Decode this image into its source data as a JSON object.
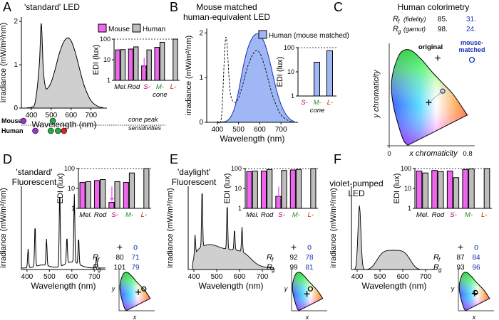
{
  "colors": {
    "mouse": "#ee66ee",
    "human": "#bdbdbd",
    "humanBlue": "#9fb8f5",
    "blueText": "#1a2fb5",
    "melGreen": "#1e8a2e",
    "sRed": "#b3006b",
    "lRed": "#cc2200",
    "fill": "#cfcfcf"
  },
  "panels": {
    "A": {
      "letter": "A",
      "title": "'standard' LED",
      "xlabel": "Wavelength (nm)",
      "ylabel": "irradiance (mW/m²/nm)",
      "yticks": [
        "0",
        "1",
        "2"
      ],
      "xticks": [
        "400",
        "500",
        "600",
        "700"
      ],
      "legend_mouse": "Mouse",
      "legend_human": "Human",
      "edi_label": "EDI (lux)",
      "edi_ticks": [
        "1",
        "10",
        "100"
      ],
      "cats": [
        "Mel.",
        "Rod",
        "S-",
        "M-",
        "L-"
      ],
      "cone": "cone",
      "row_mouse": "Mouse",
      "row_human": "Human",
      "cone_note_1": "cone peak",
      "cone_note_2": "sensitivities"
    },
    "B": {
      "letter": "B",
      "title_1": "Mouse matched",
      "title_2": "human-equivalent LED",
      "xlabel": "Wavelength (nm)",
      "ylabel": "irradiance (mW/m²/nm)",
      "yticks": [
        "0",
        "1",
        "2"
      ],
      "xticks": [
        "400",
        "500",
        "600",
        "700"
      ],
      "legend": "Human (mouse matched)",
      "edi_label": "EDI (lux)",
      "edi_ticks": [
        "1",
        "10",
        "100"
      ],
      "cats": [
        "S-",
        "M-",
        "L-"
      ],
      "cone": "cone"
    },
    "C": {
      "letter": "C",
      "title": "Human colorimetry",
      "rf_label": "R",
      "rf_sub": "f",
      "rf_paren": "(fidelity)",
      "rg_label": "R",
      "rg_sub": "g",
      "rg_paren": "(gamut)",
      "rf_orig": "85.",
      "rf_mm": "31.",
      "rg_orig": "98.",
      "rg_mm": "24.",
      "orig": "original",
      "mm_1": "mouse-",
      "mm_2": "matched",
      "xlabel": "x chromaticity",
      "ylabel": "y chromaticity",
      "tick0": "0",
      "tick8": "0.8"
    },
    "D": {
      "letter": "D",
      "title_1": "'standard'",
      "title_2": "Fluorescent",
      "xlabel": "Wavelength (nm)",
      "ylabel": "irradiance (mW/m²/nm)",
      "xticks": [
        "400",
        "500",
        "600",
        "700"
      ],
      "edi_label": "EDI (lux)",
      "edi_ticks": [
        "1",
        "10",
        "100"
      ],
      "cats": [
        "Mel.",
        "Rod",
        "S-",
        "M-",
        "L-"
      ],
      "rf": "80",
      "rf_mm": "71",
      "rg": "101",
      "rg_mm": "79",
      "plus": "+",
      "o": "o",
      "x": "x",
      "y": "y",
      "R": "R",
      "f": "f",
      "g": "g"
    },
    "E": {
      "letter": "E",
      "title_1": "'daylight'",
      "title_2": "Fluorescent",
      "xlabel": "Wavelength (nm)",
      "ylabel": "irradiance (mW/m²/nm)",
      "xticks": [
        "400",
        "500",
        "600",
        "700"
      ],
      "edi_label": "EDI (lux)",
      "edi_ticks": [
        "1",
        "10",
        "100"
      ],
      "cats": [
        "Mel.",
        "Rod",
        "S-",
        "M-",
        "L-"
      ],
      "rf": "92",
      "rf_mm": "78",
      "rg": "99",
      "rg_mm": "81",
      "plus": "+",
      "o": "o",
      "x": "x",
      "y": "y",
      "R": "R",
      "f": "f",
      "g": "g"
    },
    "F": {
      "letter": "F",
      "title_1": "violet-pumped",
      "title_2": "LED",
      "xlabel": "Wavelength (nm)",
      "ylabel": "irradiance (mW/m²/nm)",
      "xticks": [
        "400",
        "500",
        "600",
        "700"
      ],
      "edi_label": "EDI (lux)",
      "edi_ticks": [
        "1",
        "10",
        "100"
      ],
      "cats": [
        "Mel.",
        "Rod",
        "S-",
        "M-",
        "L-"
      ],
      "rf": "87",
      "rf_mm": "84",
      "rg": "93",
      "rg_mm": "96",
      "plus": "+",
      "o": "o",
      "x": "x",
      "y": "y",
      "R": "R",
      "f": "f",
      "g": "g"
    }
  },
  "chart_data": [
    {
      "id": "A-spectrum",
      "type": "area",
      "xlim": [
        350,
        780
      ],
      "ylim": [
        0,
        2
      ],
      "x": [
        380,
        400,
        420,
        440,
        450,
        460,
        470,
        480,
        500,
        520,
        540,
        560,
        580,
        600,
        620,
        640,
        660,
        680,
        700,
        720,
        740,
        760
      ],
      "y": [
        0.01,
        0.02,
        0.15,
        1.0,
        1.95,
        0.9,
        0.5,
        0.45,
        0.6,
        0.9,
        1.25,
        1.5,
        1.62,
        1.55,
        1.3,
        0.95,
        0.6,
        0.35,
        0.17,
        0.08,
        0.03,
        0.01
      ]
    },
    {
      "id": "A-edi",
      "type": "bar",
      "log": true,
      "ylim": [
        1,
        100
      ],
      "categories": [
        "Mel.",
        "Rod",
        "S-",
        "M-",
        "L-"
      ],
      "series": [
        {
          "name": "Mouse",
          "values": [
            30,
            33,
            5,
            40,
            null
          ]
        },
        {
          "name": "Human",
          "values": [
            31,
            42,
            30,
            70,
            100
          ]
        }
      ]
    },
    {
      "id": "A-cone-peaks",
      "type": "scatter",
      "series": [
        {
          "name": "Mouse",
          "x": [
            360,
            508
          ],
          "colors": [
            "#9932cc",
            "#22aa44"
          ]
        },
        {
          "name": "Human",
          "x": [
            420,
            498,
            534,
            564
          ],
          "colors": [
            "#9932cc",
            "#22aa44",
            "#22aa44",
            "#dd2222"
          ]
        }
      ]
    },
    {
      "id": "B-spectrum",
      "type": "area",
      "xlim": [
        350,
        780
      ],
      "ylim": [
        0,
        2
      ],
      "x": [
        400,
        420,
        440,
        460,
        480,
        500,
        520,
        540,
        560,
        580,
        600,
        620,
        640,
        660,
        680,
        700,
        720,
        740,
        760
      ],
      "y": [
        0,
        0.01,
        0.02,
        0.1,
        0.3,
        0.7,
        1.2,
        1.6,
        1.85,
        1.97,
        1.96,
        1.8,
        1.5,
        1.1,
        0.7,
        0.4,
        0.2,
        0.08,
        0.02
      ],
      "dashed_original": [
        0.02,
        0.15,
        1.9,
        0.7,
        0.45,
        0.55,
        0.85,
        1.2,
        1.45,
        1.6,
        1.55,
        1.3,
        0.95,
        0.6,
        0.35,
        0.17,
        0.08,
        0.03,
        0.01
      ]
    },
    {
      "id": "B-edi",
      "type": "bar",
      "log": true,
      "ylim": [
        1,
        100
      ],
      "categories": [
        "S-",
        "M-",
        "L-"
      ],
      "series": [
        {
          "name": "Human (mouse matched)",
          "values": [
            1,
            25,
            75
          ]
        }
      ]
    },
    {
      "id": "D-spectrum",
      "type": "line",
      "xlim": [
        375,
        750
      ],
      "peaks": [
        {
          "x": 405,
          "h": 0.25
        },
        {
          "x": 436,
          "h": 0.55
        },
        {
          "x": 487,
          "h": 0.35
        },
        {
          "x": 546,
          "h": 1.0
        },
        {
          "x": 578,
          "h": 0.35
        },
        {
          "x": 611,
          "h": 0.9
        },
        {
          "x": 630,
          "h": 0.35
        },
        {
          "x": 710,
          "h": 0.15
        }
      ]
    },
    {
      "id": "D-edi",
      "type": "bar",
      "log": true,
      "ylim": [
        1,
        100
      ],
      "categories": [
        "Mel.",
        "Rod",
        "S-",
        "M-",
        "L-"
      ],
      "series": [
        {
          "name": "Mouse",
          "values": [
            20,
            25,
            2,
            20,
            null
          ]
        },
        {
          "name": "Human",
          "values": [
            22,
            28,
            22,
            60,
            100
          ]
        }
      ]
    },
    {
      "id": "E-spectrum",
      "type": "area",
      "xlim": [
        375,
        750
      ],
      "peaks": [
        {
          "x": 405,
          "h": 0.25
        },
        {
          "x": 436,
          "h": 0.7
        },
        {
          "x": 546,
          "h": 0.55
        },
        {
          "x": 578,
          "h": 0.25
        },
        {
          "x": 611,
          "h": 0.3
        }
      ]
    },
    {
      "id": "E-edi",
      "type": "bar",
      "log": true,
      "ylim": [
        1,
        100
      ],
      "categories": [
        "Mel.",
        "Rod",
        "S-",
        "M-",
        "L-"
      ],
      "series": [
        {
          "name": "Mouse",
          "values": [
            70,
            75,
            4,
            85,
            null
          ]
        },
        {
          "name": "Human",
          "values": [
            75,
            90,
            80,
            90,
            100
          ]
        }
      ]
    },
    {
      "id": "F-spectrum",
      "type": "area",
      "xlim": [
        375,
        750
      ],
      "peak_violet": {
        "x": 410,
        "h": 1.0
      },
      "broad_max": 0.3
    },
    {
      "id": "F-edi",
      "type": "bar",
      "log": true,
      "ylim": [
        1,
        100
      ],
      "categories": [
        "Mel.",
        "Rod",
        "S-",
        "M-",
        "L-"
      ],
      "series": [
        {
          "name": "Mouse",
          "values": [
            75,
            80,
            75,
            90,
            null
          ]
        },
        {
          "name": "Human",
          "values": [
            60,
            70,
            35,
            95,
            100
          ]
        }
      ]
    },
    {
      "id": "C-chromaticity",
      "type": "scatter",
      "xlim": [
        0,
        0.8
      ],
      "ylim": [
        0,
        0.9
      ],
      "original": {
        "x": 0.37,
        "y": 0.38
      },
      "mouse_matched": {
        "x": 0.5,
        "y": 0.48
      }
    }
  ]
}
